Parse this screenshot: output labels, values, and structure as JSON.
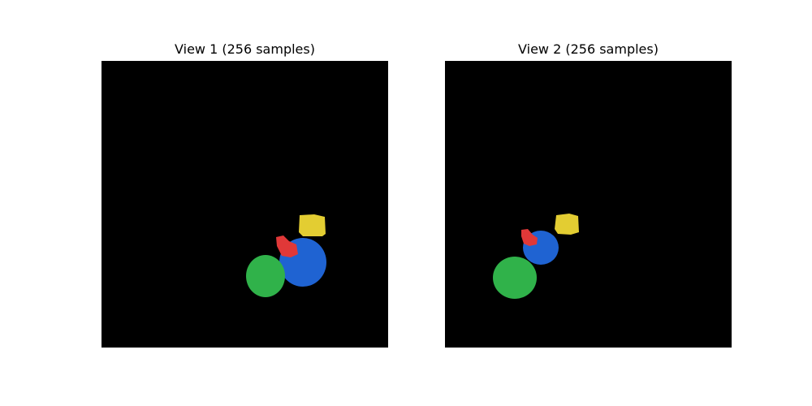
{
  "panels": [
    {
      "title": "View 1 (256 samples)",
      "objects": [
        {
          "name": "yellow-object",
          "color": "#e3cd32"
        },
        {
          "name": "red-object",
          "color": "#e03838"
        },
        {
          "name": "blue-object",
          "color": "#1f63d2"
        },
        {
          "name": "green-object",
          "color": "#30b24a"
        }
      ]
    },
    {
      "title": "View 2 (256 samples)",
      "objects": [
        {
          "name": "yellow-object",
          "color": "#e3cd32"
        },
        {
          "name": "red-object",
          "color": "#e03838"
        },
        {
          "name": "blue-object",
          "color": "#1f63d2"
        },
        {
          "name": "green-object",
          "color": "#30b24a"
        }
      ]
    }
  ],
  "background_color": "#000000"
}
